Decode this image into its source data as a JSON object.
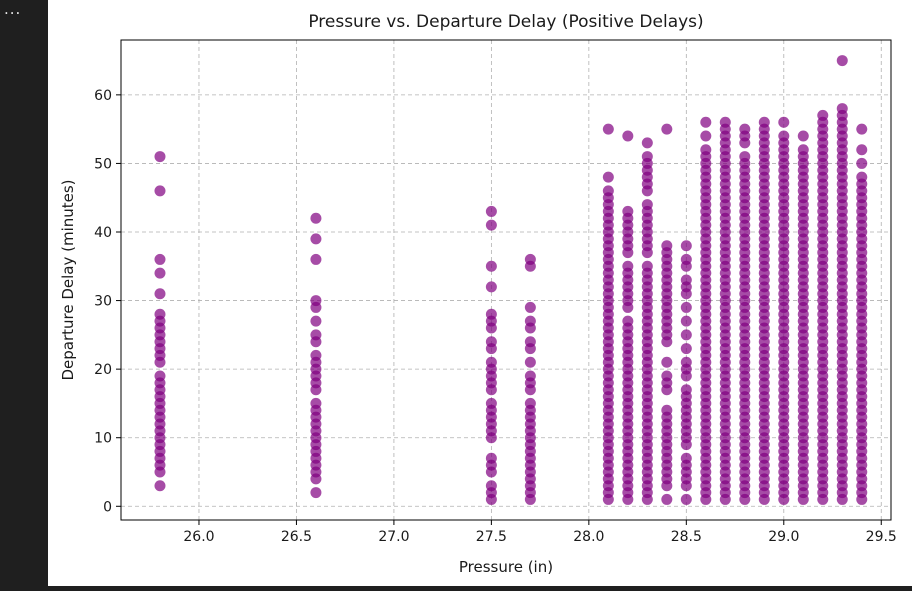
{
  "cell": {
    "ellipsis": "..."
  },
  "chart_data": {
    "type": "scatter",
    "title": "Pressure vs. Departure Delay (Positive Delays)",
    "xlabel": "Pressure (in)",
    "ylabel": "Departure Delay (minutes)",
    "xlim": [
      25.6,
      29.55
    ],
    "ylim": [
      -2,
      68
    ],
    "xticks": [
      "26.0",
      "26.5",
      "27.0",
      "27.5",
      "28.0",
      "28.5",
      "29.0",
      "29.5"
    ],
    "yticks": [
      "0",
      "10",
      "20",
      "30",
      "40",
      "50",
      "60"
    ],
    "grid": true,
    "marker_color": "#800080",
    "marker_alpha": 0.7,
    "columns": [
      {
        "x": 25.8,
        "delays": [
          3,
          5,
          6,
          7,
          8,
          9,
          10,
          11,
          12,
          13,
          14,
          15,
          16,
          17,
          18,
          19,
          21,
          22,
          23,
          24,
          25,
          26,
          27,
          28,
          31,
          34,
          36,
          46,
          51
        ]
      },
      {
        "x": 26.6,
        "delays": [
          2,
          4,
          5,
          6,
          7,
          8,
          9,
          10,
          11,
          12,
          13,
          14,
          15,
          17,
          18,
          19,
          20,
          21,
          22,
          24,
          25,
          27,
          29,
          30,
          36,
          39,
          42
        ]
      },
      {
        "x": 27.5,
        "delays": [
          1,
          2,
          3,
          5,
          6,
          7,
          10,
          11,
          12,
          13,
          14,
          15,
          17,
          18,
          19,
          20,
          21,
          23,
          24,
          26,
          27,
          28,
          32,
          35,
          41,
          43
        ]
      },
      {
        "x": 27.7,
        "delays": [
          1,
          2,
          3,
          4,
          5,
          6,
          7,
          8,
          9,
          10,
          11,
          12,
          13,
          14,
          15,
          17,
          18,
          19,
          21,
          23,
          24,
          26,
          27,
          29,
          35,
          36
        ]
      },
      {
        "x": 28.1,
        "delays": [
          1,
          2,
          3,
          4,
          5,
          6,
          7,
          8,
          9,
          10,
          11,
          12,
          13,
          14,
          15,
          16,
          17,
          18,
          19,
          20,
          21,
          22,
          23,
          24,
          25,
          26,
          27,
          28,
          29,
          30,
          31,
          32,
          33,
          34,
          35,
          36,
          37,
          38,
          39,
          40,
          41,
          42,
          43,
          44,
          45,
          46,
          48,
          55
        ]
      },
      {
        "x": 28.2,
        "delays": [
          1,
          2,
          3,
          4,
          5,
          6,
          7,
          8,
          9,
          10,
          11,
          12,
          13,
          14,
          15,
          16,
          17,
          18,
          19,
          20,
          21,
          22,
          23,
          24,
          25,
          26,
          27,
          29,
          30,
          31,
          32,
          33,
          34,
          35,
          37,
          38,
          39,
          40,
          41,
          42,
          43,
          54
        ]
      },
      {
        "x": 28.3,
        "delays": [
          1,
          2,
          3,
          4,
          5,
          6,
          7,
          8,
          9,
          10,
          11,
          12,
          13,
          14,
          15,
          16,
          17,
          18,
          19,
          20,
          21,
          22,
          23,
          24,
          25,
          26,
          27,
          28,
          29,
          30,
          31,
          32,
          33,
          34,
          35,
          37,
          38,
          39,
          40,
          41,
          42,
          43,
          44,
          46,
          47,
          48,
          49,
          50,
          51,
          53
        ]
      },
      {
        "x": 28.4,
        "delays": [
          1,
          3,
          4,
          5,
          6,
          7,
          8,
          9,
          10,
          11,
          12,
          13,
          14,
          17,
          18,
          19,
          21,
          24,
          25,
          26,
          27,
          28,
          29,
          30,
          31,
          32,
          33,
          34,
          35,
          36,
          37,
          38,
          55
        ]
      },
      {
        "x": 28.5,
        "delays": [
          1,
          3,
          4,
          5,
          6,
          7,
          9,
          10,
          11,
          12,
          13,
          14,
          15,
          16,
          17,
          19,
          20,
          21,
          23,
          25,
          27,
          29,
          31,
          32,
          33,
          35,
          36,
          38
        ]
      },
      {
        "x": 28.6,
        "delays": [
          1,
          2,
          3,
          4,
          5,
          6,
          7,
          8,
          9,
          10,
          11,
          12,
          13,
          14,
          15,
          16,
          17,
          18,
          19,
          20,
          21,
          22,
          23,
          24,
          25,
          26,
          27,
          28,
          29,
          30,
          31,
          32,
          33,
          34,
          35,
          36,
          37,
          38,
          39,
          40,
          41,
          42,
          43,
          44,
          45,
          46,
          47,
          48,
          49,
          50,
          51,
          52,
          54,
          56
        ]
      },
      {
        "x": 28.7,
        "delays": [
          1,
          2,
          3,
          4,
          5,
          6,
          7,
          8,
          9,
          10,
          11,
          12,
          13,
          14,
          15,
          16,
          17,
          18,
          19,
          20,
          21,
          22,
          23,
          24,
          25,
          26,
          27,
          28,
          29,
          30,
          31,
          32,
          33,
          34,
          35,
          36,
          37,
          38,
          39,
          40,
          41,
          42,
          43,
          44,
          45,
          46,
          47,
          48,
          49,
          50,
          51,
          52,
          53,
          54,
          55,
          56
        ]
      },
      {
        "x": 28.8,
        "delays": [
          1,
          2,
          3,
          4,
          5,
          6,
          7,
          8,
          9,
          10,
          11,
          12,
          13,
          14,
          15,
          16,
          17,
          18,
          19,
          20,
          21,
          22,
          23,
          24,
          25,
          26,
          27,
          28,
          29,
          30,
          31,
          32,
          33,
          34,
          35,
          36,
          37,
          38,
          39,
          40,
          41,
          42,
          43,
          44,
          45,
          46,
          47,
          48,
          49,
          50,
          51,
          53,
          54,
          55
        ]
      },
      {
        "x": 28.9,
        "delays": [
          1,
          2,
          3,
          4,
          5,
          6,
          7,
          8,
          9,
          10,
          11,
          12,
          13,
          14,
          15,
          16,
          17,
          18,
          19,
          20,
          21,
          22,
          23,
          24,
          25,
          26,
          27,
          28,
          29,
          30,
          31,
          32,
          33,
          34,
          35,
          36,
          37,
          38,
          39,
          40,
          41,
          42,
          43,
          44,
          45,
          46,
          47,
          48,
          49,
          50,
          51,
          52,
          53,
          54,
          55,
          56
        ]
      },
      {
        "x": 29.0,
        "delays": [
          1,
          2,
          3,
          4,
          5,
          6,
          7,
          8,
          9,
          10,
          11,
          12,
          13,
          14,
          15,
          16,
          17,
          18,
          19,
          20,
          21,
          22,
          23,
          24,
          25,
          26,
          27,
          28,
          29,
          30,
          31,
          32,
          33,
          34,
          35,
          36,
          37,
          38,
          39,
          40,
          41,
          42,
          43,
          44,
          45,
          46,
          47,
          48,
          49,
          50,
          51,
          52,
          53,
          54,
          56
        ]
      },
      {
        "x": 29.1,
        "delays": [
          1,
          2,
          3,
          4,
          5,
          6,
          7,
          8,
          9,
          10,
          11,
          12,
          13,
          14,
          15,
          16,
          17,
          18,
          19,
          20,
          21,
          22,
          23,
          24,
          25,
          26,
          27,
          28,
          29,
          30,
          31,
          32,
          33,
          34,
          35,
          36,
          37,
          38,
          39,
          40,
          41,
          42,
          43,
          44,
          45,
          46,
          47,
          48,
          49,
          50,
          51,
          52,
          54
        ]
      },
      {
        "x": 29.2,
        "delays": [
          1,
          2,
          3,
          4,
          5,
          6,
          7,
          8,
          9,
          10,
          11,
          12,
          13,
          14,
          15,
          16,
          17,
          18,
          19,
          20,
          21,
          22,
          23,
          24,
          25,
          26,
          27,
          28,
          29,
          30,
          31,
          32,
          33,
          34,
          35,
          36,
          37,
          38,
          39,
          40,
          41,
          42,
          43,
          44,
          45,
          46,
          47,
          48,
          49,
          50,
          51,
          52,
          53,
          54,
          55,
          56,
          57
        ]
      },
      {
        "x": 29.3,
        "delays": [
          1,
          2,
          3,
          4,
          5,
          6,
          7,
          8,
          9,
          10,
          11,
          12,
          13,
          14,
          15,
          16,
          17,
          18,
          19,
          20,
          21,
          22,
          23,
          24,
          25,
          26,
          27,
          28,
          29,
          30,
          31,
          32,
          33,
          34,
          35,
          36,
          37,
          38,
          39,
          40,
          41,
          42,
          43,
          44,
          45,
          46,
          47,
          48,
          49,
          50,
          51,
          52,
          53,
          54,
          55,
          56,
          57,
          58,
          65
        ]
      },
      {
        "x": 29.4,
        "delays": [
          1,
          2,
          3,
          4,
          5,
          6,
          7,
          8,
          9,
          10,
          11,
          12,
          13,
          14,
          15,
          16,
          17,
          18,
          19,
          20,
          21,
          22,
          23,
          24,
          25,
          26,
          27,
          28,
          29,
          30,
          31,
          32,
          33,
          34,
          35,
          36,
          37,
          38,
          39,
          40,
          41,
          42,
          43,
          44,
          45,
          46,
          47,
          48,
          50,
          52,
          55
        ]
      }
    ]
  }
}
